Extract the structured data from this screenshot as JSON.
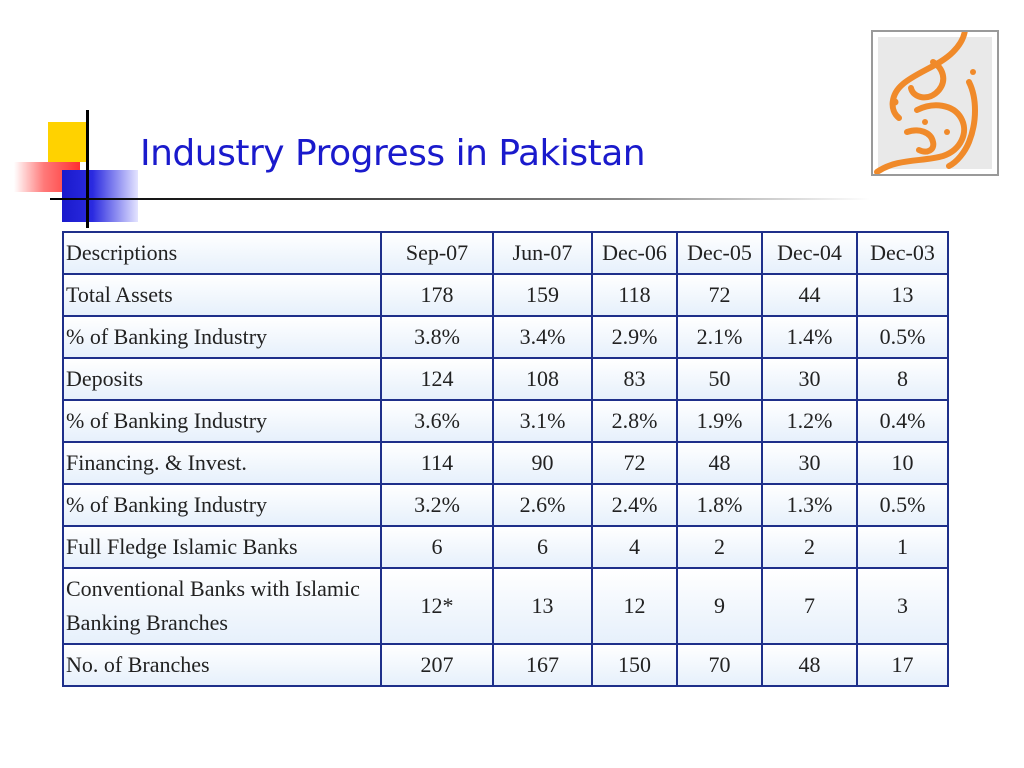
{
  "slide": {
    "title": "Industry Progress in Pakistan"
  },
  "colors": {
    "title": "#1a1acc",
    "table_border": "#1e2f8a",
    "logo_orange": "#f08a2a",
    "deco_yellow": "#ffd200",
    "deco_red": "#ff3030",
    "deco_blue": "#1a1acc"
  },
  "logo": {
    "icon": "calligraphy-logo-icon"
  },
  "table": {
    "headers": [
      "Descriptions",
      "Sep-07",
      "Jun-07",
      "Dec-06",
      "Dec-05",
      "Dec-04",
      "Dec-03"
    ],
    "rows": [
      {
        "label": "Total Assets",
        "values": [
          "178",
          "159",
          "118",
          "72",
          "44",
          "13"
        ]
      },
      {
        "label": "% of Banking Industry",
        "values": [
          "3.8%",
          "3.4%",
          "2.9%",
          "2.1%",
          "1.4%",
          "0.5%"
        ]
      },
      {
        "label": "Deposits",
        "values": [
          "124",
          "108",
          "83",
          "50",
          "30",
          "8"
        ]
      },
      {
        "label": "% of Banking Industry",
        "values": [
          "3.6%",
          "3.1%",
          "2.8%",
          "1.9%",
          "1.2%",
          "0.4%"
        ]
      },
      {
        "label": "Financing. & Invest.",
        "values": [
          "114",
          "90",
          "72",
          "48",
          "30",
          "10"
        ]
      },
      {
        "label": "% of Banking Industry",
        "values": [
          "3.2%",
          "2.6%",
          "2.4%",
          "1.8%",
          "1.3%",
          "0.5%"
        ]
      },
      {
        "label": "Full Fledge Islamic Banks",
        "values": [
          "6",
          "6",
          "4",
          "2",
          "2",
          "1"
        ]
      },
      {
        "label_line1": "Conventional Banks with Islamic",
        "label_line2": "Banking Branches",
        "values": [
          "12*",
          "13",
          "12",
          "9",
          "7",
          "3"
        ]
      },
      {
        "label": "No. of Branches",
        "values": [
          "207",
          "167",
          "150",
          "70",
          "48",
          "17"
        ]
      }
    ]
  }
}
